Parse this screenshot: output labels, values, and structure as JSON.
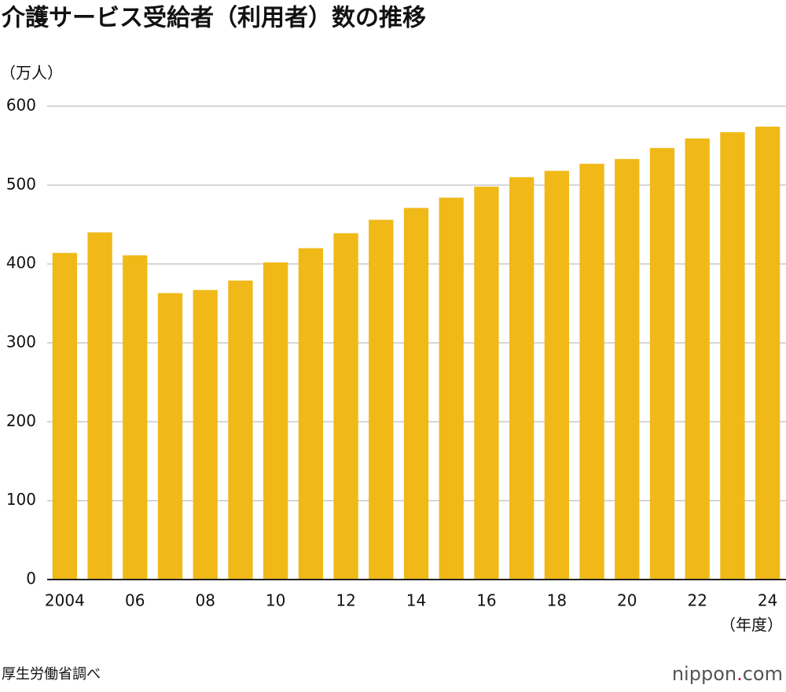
{
  "chart_data": {
    "type": "bar",
    "title": "介護サービス受給者（利用者）数の推移",
    "y_label": "（万人）",
    "x_label": "（年度）",
    "source": "厚生労働省調べ",
    "logo": [
      "nippon",
      ".",
      "com"
    ],
    "categories": [
      "2004",
      null,
      "06",
      null,
      "08",
      null,
      "10",
      null,
      "12",
      null,
      "14",
      null,
      "16",
      null,
      "18",
      null,
      "20",
      null,
      "22",
      null,
      "24"
    ],
    "values": [
      414,
      440,
      411,
      363,
      367,
      379,
      402,
      420,
      439,
      456,
      471,
      484,
      498,
      510,
      518,
      527,
      533,
      547,
      559,
      567,
      574
    ],
    "color": "#f0b918",
    "ylim": [
      0,
      600
    ],
    "yticks": [
      0,
      100,
      200,
      300,
      400,
      500,
      600
    ],
    "grid": true
  }
}
